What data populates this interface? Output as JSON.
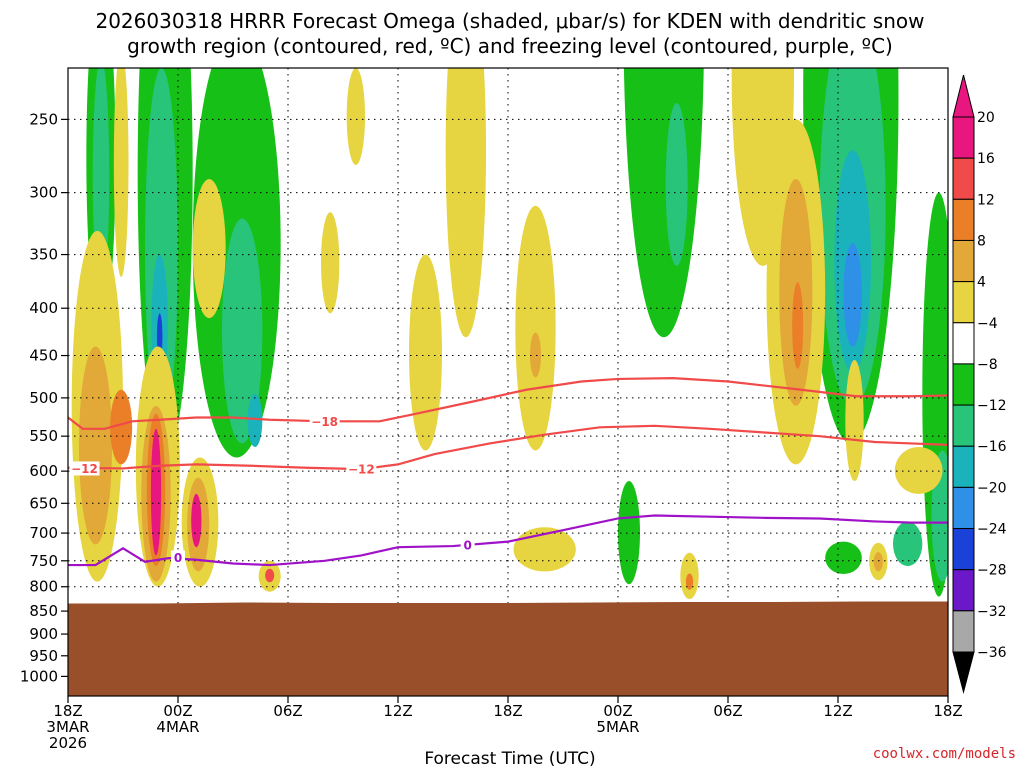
{
  "chart_data": {
    "type": "heatmap",
    "title_line1": "2026030318 HRRR Forecast Omega (shaded, μbar/s) for KDEN with dendritic snow",
    "title_line2": "growth region (contoured, red, ºC) and freezing level (contoured, purple, ºC)",
    "xlabel": "Forecast Time (UTC)",
    "credit": "coolwx.com/models",
    "x_range_hours": [
      0,
      48
    ],
    "y_range_hpa": [
      220,
      1050
    ],
    "y_ticks": [
      250,
      300,
      350,
      400,
      450,
      500,
      550,
      600,
      650,
      700,
      750,
      800,
      850,
      900,
      950,
      1000
    ],
    "x_ticks": [
      {
        "hour": 0,
        "lines": [
          "18Z",
          "3MAR",
          "2026"
        ]
      },
      {
        "hour": 6,
        "lines": [
          "00Z",
          "4MAR"
        ]
      },
      {
        "hour": 12,
        "lines": [
          "06Z"
        ]
      },
      {
        "hour": 18,
        "lines": [
          "12Z"
        ]
      },
      {
        "hour": 24,
        "lines": [
          "18Z"
        ]
      },
      {
        "hour": 30,
        "lines": [
          "00Z",
          "5MAR"
        ]
      },
      {
        "hour": 36,
        "lines": [
          "06Z"
        ]
      },
      {
        "hour": 42,
        "lines": [
          "12Z"
        ]
      },
      {
        "hour": 48,
        "lines": [
          "18Z"
        ]
      }
    ],
    "colorbar": {
      "labels": [
        "20",
        "16",
        "12",
        "8",
        "4",
        "−4",
        "−8",
        "−12",
        "−16",
        "−20",
        "−24",
        "−28",
        "−32",
        "−36"
      ],
      "colors": [
        "#e8177f",
        "#f04a4a",
        "#ea7f28",
        "#e2a838",
        "#e6d440",
        "#ffffff",
        "#17c017",
        "#27c47a",
        "#1bb3bb",
        "#2e90e6",
        "#1a42d8",
        "#6a18c8",
        "#a515c8",
        "#a8a8a8"
      ],
      "top_color": "#e8177f",
      "bottom_color": "#000000"
    },
    "terrain": {
      "color": "#9a4f2b",
      "surface_hpa": [
        834,
        834,
        832,
        833,
        833,
        833,
        832,
        831,
        831,
        830,
        830
      ]
    },
    "isotherms": [
      {
        "label": "−18",
        "color": "#f04a4a",
        "label_hour": 14.0,
        "points": [
          [
            0,
            525
          ],
          [
            0.8,
            540
          ],
          [
            2,
            540
          ],
          [
            3.5,
            530
          ],
          [
            5,
            528
          ],
          [
            7,
            525
          ],
          [
            9,
            525
          ],
          [
            11,
            528
          ],
          [
            14,
            530
          ],
          [
            17,
            530
          ],
          [
            19,
            520
          ],
          [
            22,
            505
          ],
          [
            25,
            490
          ],
          [
            28,
            480
          ],
          [
            30,
            477
          ],
          [
            33,
            476
          ],
          [
            36,
            480
          ],
          [
            40,
            490
          ],
          [
            43,
            498
          ],
          [
            46,
            498
          ],
          [
            48,
            497
          ]
        ]
      },
      {
        "label": "−12",
        "color": "#f04a4a",
        "label_hour": 16.0,
        "points": [
          [
            0,
            595
          ],
          [
            3,
            596
          ],
          [
            5,
            592
          ],
          [
            7,
            590
          ],
          [
            10,
            592
          ],
          [
            13,
            595
          ],
          [
            16,
            597
          ],
          [
            18,
            590
          ],
          [
            20,
            575
          ],
          [
            23,
            560
          ],
          [
            26,
            548
          ],
          [
            29,
            538
          ],
          [
            32,
            536
          ],
          [
            35,
            540
          ],
          [
            38,
            545
          ],
          [
            41,
            550
          ],
          [
            44,
            558
          ],
          [
            48,
            562
          ]
        ]
      },
      {
        "label": "−12",
        "color": "#f04a4a",
        "label_hour": 0.9,
        "points": [
          [
            0,
            595
          ],
          [
            0.9,
            596
          ]
        ]
      },
      {
        "label": "0",
        "color": "#a012c8",
        "label_hour": 21.8,
        "points": [
          [
            0,
            758
          ],
          [
            1.5,
            758
          ],
          [
            3,
            727
          ],
          [
            4.2,
            752
          ],
          [
            5.5,
            745
          ],
          [
            7,
            748
          ],
          [
            9,
            755
          ],
          [
            11,
            758
          ],
          [
            14,
            750
          ],
          [
            16,
            740
          ],
          [
            18,
            725
          ],
          [
            21,
            723
          ],
          [
            24,
            715
          ],
          [
            27,
            695
          ],
          [
            30,
            675
          ],
          [
            32,
            670
          ],
          [
            35,
            672
          ],
          [
            38,
            674
          ],
          [
            41,
            675
          ],
          [
            44,
            680
          ],
          [
            46,
            682
          ],
          [
            48,
            682
          ]
        ]
      },
      {
        "label": "0",
        "color": "#a012c8",
        "label_hour": 6.0,
        "points": [
          [
            6,
            744
          ]
        ]
      }
    ],
    "omega_regions": [
      {
        "value": -8,
        "cx": 1.8,
        "cy": 300,
        "rx": 0.8,
        "ry": 120
      },
      {
        "value": -12,
        "cx": 1.8,
        "cy": 300,
        "rx": 0.45,
        "ry": 85
      },
      {
        "value": -8,
        "cx": 5.3,
        "cy": 360,
        "rx": 1.5,
        "ry": 220
      },
      {
        "value": -12,
        "cx": 5.1,
        "cy": 380,
        "rx": 0.9,
        "ry": 160
      },
      {
        "value": -16,
        "cx": 5.0,
        "cy": 420,
        "rx": 0.45,
        "ry": 70
      },
      {
        "value": -24,
        "cx": 5.0,
        "cy": 430,
        "rx": 0.15,
        "ry": 25
      },
      {
        "value": -8,
        "cx": 9.2,
        "cy": 390,
        "rx": 2.4,
        "ry": 190
      },
      {
        "value": -12,
        "cx": 9.5,
        "cy": 440,
        "rx": 1.1,
        "ry": 120
      },
      {
        "value": -16,
        "cx": 10.2,
        "cy": 530,
        "rx": 0.4,
        "ry": 35
      },
      {
        "value": -8,
        "cx": 32.5,
        "cy": 260,
        "rx": 2.2,
        "ry": 170
      },
      {
        "value": -12,
        "cx": 33.2,
        "cy": 300,
        "rx": 0.6,
        "ry": 60
      },
      {
        "value": -8,
        "cx": 30.6,
        "cy": 705,
        "rx": 0.6,
        "ry": 90
      },
      {
        "value": -8,
        "cx": 42.7,
        "cy": 330,
        "rx": 2.6,
        "ry": 230
      },
      {
        "value": -12,
        "cx": 42.8,
        "cy": 350,
        "rx": 1.8,
        "ry": 160
      },
      {
        "value": -16,
        "cx": 42.8,
        "cy": 370,
        "rx": 1.0,
        "ry": 100
      },
      {
        "value": -20,
        "cx": 42.8,
        "cy": 390,
        "rx": 0.5,
        "ry": 50
      },
      {
        "value": -8,
        "cx": 47.5,
        "cy": 560,
        "rx": 0.9,
        "ry": 260
      },
      {
        "value": -12,
        "cx": 47.7,
        "cy": 680,
        "rx": 0.6,
        "ry": 110
      },
      {
        "value": -12,
        "cx": 45.8,
        "cy": 720,
        "rx": 0.8,
        "ry": 40
      },
      {
        "value": -8,
        "cx": 42.3,
        "cy": 745,
        "rx": 1.0,
        "ry": 30
      },
      {
        "value": 4,
        "cx": 1.6,
        "cy": 560,
        "rx": 1.4,
        "ry": 230
      },
      {
        "value": 8,
        "cx": 1.5,
        "cy": 580,
        "rx": 0.9,
        "ry": 140
      },
      {
        "value": 12,
        "cx": 2.9,
        "cy": 540,
        "rx": 0.6,
        "ry": 50
      },
      {
        "value": 4,
        "cx": 2.9,
        "cy": 290,
        "rx": 0.4,
        "ry": 80
      },
      {
        "value": 4,
        "cx": 4.9,
        "cy": 620,
        "rx": 1.2,
        "ry": 180
      },
      {
        "value": 8,
        "cx": 4.8,
        "cy": 650,
        "rx": 0.8,
        "ry": 140
      },
      {
        "value": 12,
        "cx": 4.8,
        "cy": 640,
        "rx": 0.5,
        "ry": 120
      },
      {
        "value": 20,
        "cx": 4.8,
        "cy": 640,
        "rx": 0.28,
        "ry": 100
      },
      {
        "value": 4,
        "cx": 7.2,
        "cy": 690,
        "rx": 1.0,
        "ry": 110
      },
      {
        "value": 8,
        "cx": 7.1,
        "cy": 690,
        "rx": 0.6,
        "ry": 80
      },
      {
        "value": 20,
        "cx": 7.0,
        "cy": 680,
        "rx": 0.28,
        "ry": 45
      },
      {
        "value": 4,
        "cx": 11.0,
        "cy": 780,
        "rx": 0.6,
        "ry": 30
      },
      {
        "value": 16,
        "cx": 11.0,
        "cy": 778,
        "rx": 0.25,
        "ry": 13
      },
      {
        "value": 4,
        "cx": 7.7,
        "cy": 350,
        "rx": 0.9,
        "ry": 60
      },
      {
        "value": 4,
        "cx": 14.3,
        "cy": 360,
        "rx": 0.5,
        "ry": 45
      },
      {
        "value": 4,
        "cx": 15.7,
        "cy": 250,
        "rx": 0.5,
        "ry": 30
      },
      {
        "value": 4,
        "cx": 21.7,
        "cy": 300,
        "rx": 1.1,
        "ry": 130
      },
      {
        "value": 4,
        "cx": 19.5,
        "cy": 460,
        "rx": 0.9,
        "ry": 110
      },
      {
        "value": 4,
        "cx": 25.5,
        "cy": 440,
        "rx": 1.1,
        "ry": 130
      },
      {
        "value": 8,
        "cx": 25.5,
        "cy": 450,
        "rx": 0.3,
        "ry": 25
      },
      {
        "value": 4,
        "cx": 26.0,
        "cy": 730,
        "rx": 1.7,
        "ry": 40
      },
      {
        "value": 4,
        "cx": 33.9,
        "cy": 780,
        "rx": 0.5,
        "ry": 45
      },
      {
        "value": 12,
        "cx": 33.9,
        "cy": 790,
        "rx": 0.2,
        "ry": 16
      },
      {
        "value": 4,
        "cx": 37.9,
        "cy": 250,
        "rx": 1.7,
        "ry": 110
      },
      {
        "value": 4,
        "cx": 39.7,
        "cy": 420,
        "rx": 1.6,
        "ry": 170
      },
      {
        "value": 8,
        "cx": 39.7,
        "cy": 400,
        "rx": 0.9,
        "ry": 110
      },
      {
        "value": 12,
        "cx": 39.8,
        "cy": 420,
        "rx": 0.3,
        "ry": 45
      },
      {
        "value": 4,
        "cx": 42.9,
        "cy": 535,
        "rx": 0.5,
        "ry": 80
      },
      {
        "value": 4,
        "cx": 44.2,
        "cy": 752,
        "rx": 0.5,
        "ry": 35
      },
      {
        "value": 8,
        "cx": 44.2,
        "cy": 752,
        "rx": 0.25,
        "ry": 18
      },
      {
        "value": 4,
        "cx": 46.4,
        "cy": 600,
        "rx": 1.3,
        "ry": 35
      }
    ]
  }
}
